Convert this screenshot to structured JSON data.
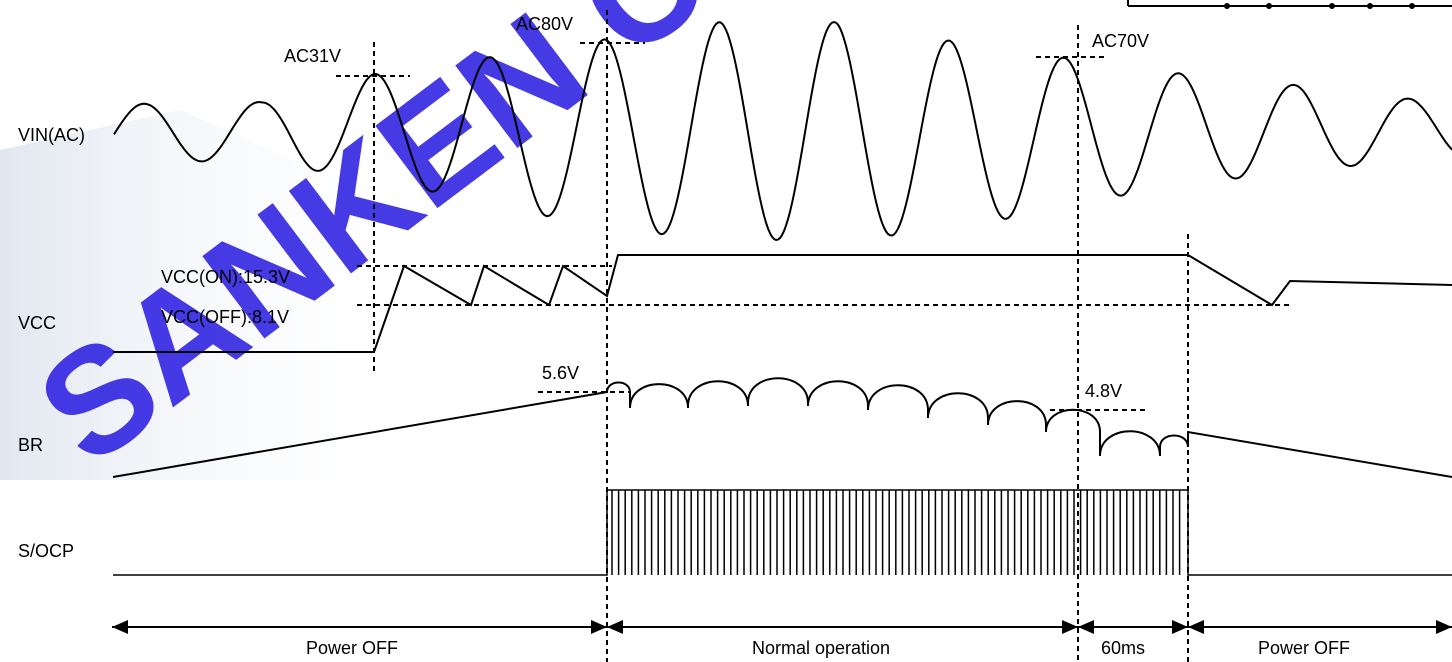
{
  "watermark": {
    "text": "SANKEN CONFIDENTIAL",
    "color": "#2b1fe0"
  },
  "signals": {
    "vin": "VIN(AC)",
    "vcc": "VCC",
    "br": "BR",
    "socp": "S/OCP"
  },
  "levels": {
    "ac31": "AC31V",
    "ac80": "AC80V",
    "ac70": "AC70V",
    "vcc_on": "VCC(ON):15.3V",
    "vcc_off": "VCC(OFF):8.1V",
    "br_high": "5.6V",
    "br_low": "4.8V"
  },
  "periods": {
    "off1": "Power OFF",
    "normal": "Normal operation",
    "delay": "60ms",
    "off2": "Power OFF"
  }
}
